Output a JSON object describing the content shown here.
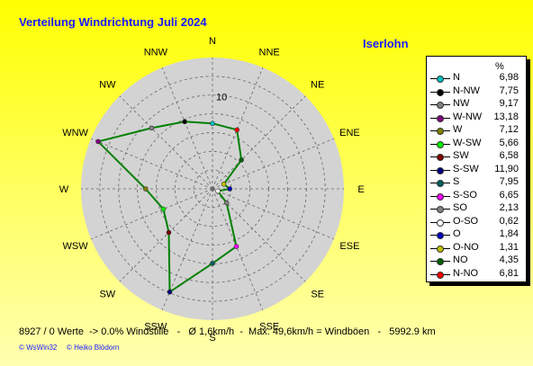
{
  "title": "Verteilung Windrichtung    Juli 2024",
  "location": "Iserlohn",
  "chart_data": {
    "type": "radar",
    "directions": [
      "N",
      "NNE",
      "NE",
      "ENE",
      "E",
      "ESE",
      "SE",
      "SSE",
      "S",
      "SSW",
      "SW",
      "WSW",
      "W",
      "WNW",
      "NW",
      "NNW"
    ],
    "values": [
      6.98,
      6.81,
      4.35,
      1.31,
      1.84,
      0.62,
      2.13,
      6.65,
      7.95,
      11.9,
      6.58,
      5.66,
      7.12,
      13.18,
      9.17,
      7.75
    ],
    "point_colors": [
      "#00c0c0",
      "#ff0000",
      "#006000",
      "#c0c000",
      "#0000c0",
      "#ffffff",
      "#808080",
      "#ff00ff",
      "#006060",
      "#000080",
      "#800000",
      "#00ff00",
      "#808000",
      "#800080",
      "#808080",
      "#000000"
    ],
    "rmax": 14,
    "ring_step": 2,
    "tick_label": "10",
    "tick_label_value": 10,
    "line_color": "#008000",
    "grid": true
  },
  "legend": {
    "unit": "%",
    "items": [
      {
        "label": "N",
        "value": "6,98",
        "color": "#00c0c0"
      },
      {
        "label": "N-NW",
        "value": "7,75",
        "color": "#000000"
      },
      {
        "label": "NW",
        "value": "9,17",
        "color": "#808080"
      },
      {
        "label": "W-NW",
        "value": "13,18",
        "color": "#800080"
      },
      {
        "label": "W",
        "value": "7,12",
        "color": "#808000"
      },
      {
        "label": "W-SW",
        "value": "5,66",
        "color": "#00ff00"
      },
      {
        "label": "SW",
        "value": "6,58",
        "color": "#800000"
      },
      {
        "label": "S-SW",
        "value": "11,90",
        "color": "#000080"
      },
      {
        "label": "S",
        "value": "7,95",
        "color": "#006060"
      },
      {
        "label": "S-SO",
        "value": "6,65",
        "color": "#ff00ff"
      },
      {
        "label": "SO",
        "value": "2,13",
        "color": "#808080"
      },
      {
        "label": "O-SO",
        "value": "0,62",
        "color": "#ffffff"
      },
      {
        "label": "O",
        "value": "1,84",
        "color": "#0000c0"
      },
      {
        "label": "O-NO",
        "value": "1,31",
        "color": "#c0c000"
      },
      {
        "label": "NO",
        "value": "4,35",
        "color": "#006000"
      },
      {
        "label": "N-NO",
        "value": "6,81",
        "color": "#ff0000"
      }
    ]
  },
  "footer": "8927 / 0 Werte  -> 0.0% Windstille   -   Ø 1,6km/h  -  Max. 49,6km/h = Windböen   -   5992.9 km",
  "copyright1": "© WsWin32",
  "copyright2": "© Heiko Blödorn"
}
